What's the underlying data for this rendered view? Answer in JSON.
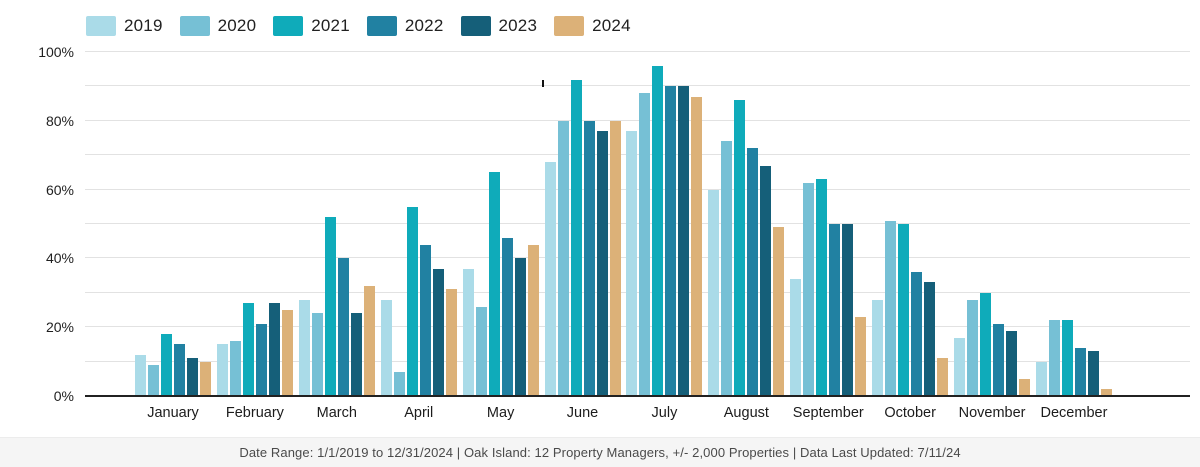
{
  "chart_data": {
    "type": "bar",
    "title": "",
    "xlabel": "",
    "ylabel": "",
    "ylim": [
      0,
      100
    ],
    "ytick_labels": [
      "0%",
      "20%",
      "40%",
      "60%",
      "80%",
      "100%"
    ],
    "minor_gridlines_every_pct": 10,
    "grid": "horizontal",
    "legend_position": "top-left",
    "categories": [
      "January",
      "February",
      "March",
      "April",
      "May",
      "June",
      "July",
      "August",
      "September",
      "October",
      "November",
      "December"
    ],
    "series": [
      {
        "name": "2019",
        "color": "#aadbe8",
        "values": [
          12,
          15,
          28,
          28,
          37,
          68,
          77,
          60,
          34,
          28,
          17,
          10
        ]
      },
      {
        "name": "2020",
        "color": "#76c0d5",
        "values": [
          9,
          16,
          24,
          7,
          26,
          80,
          88,
          74,
          62,
          51,
          28,
          22
        ]
      },
      {
        "name": "2021",
        "color": "#0fabba",
        "values": [
          18,
          27,
          52,
          55,
          65,
          92,
          96,
          86,
          63,
          50,
          30,
          22
        ]
      },
      {
        "name": "2022",
        "color": "#2181a2",
        "values": [
          15,
          21,
          40,
          44,
          46,
          80,
          90,
          72,
          50,
          36,
          21,
          14
        ]
      },
      {
        "name": "2023",
        "color": "#155f79",
        "values": [
          11,
          27,
          24,
          37,
          40,
          77,
          90,
          67,
          50,
          33,
          19,
          13
        ]
      },
      {
        "name": "2024",
        "color": "#dcb178",
        "values": [
          10,
          25,
          32,
          31,
          44,
          80,
          87,
          49,
          23,
          11,
          5,
          2
        ]
      }
    ]
  },
  "footer": {
    "text": "Date Range: 1/1/2019 to 12/31/2024  |  Oak Island: 12 Property Managers, +/- 2,000 Properties  |  Data Last Updated: 7/11/24"
  }
}
